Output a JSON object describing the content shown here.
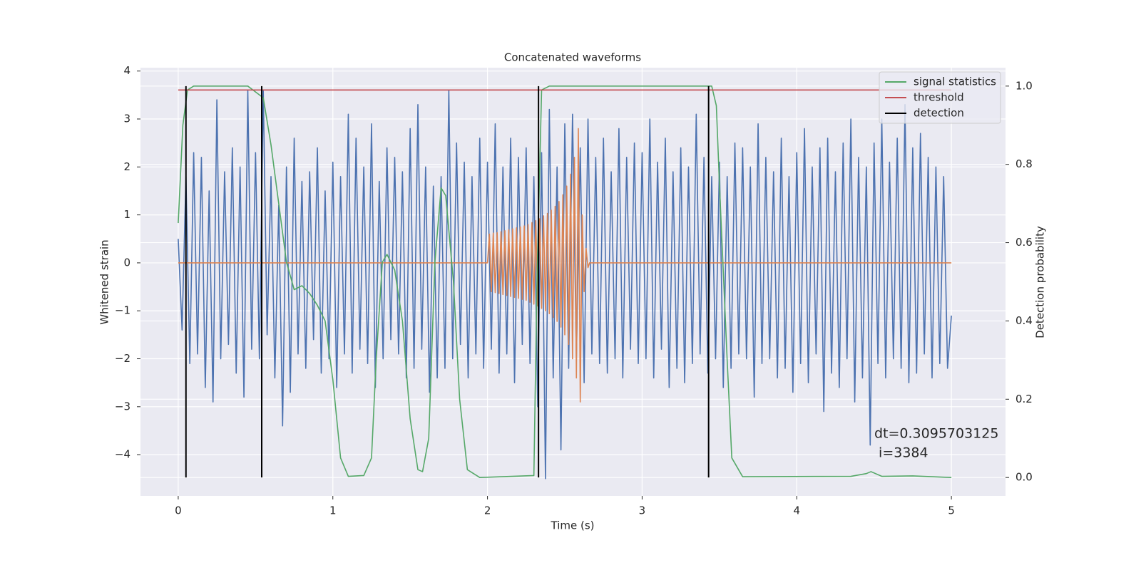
{
  "chart_data": {
    "type": "line",
    "title": "Concatenated waveforms",
    "xlabel": "Time (s)",
    "ylabel": "Whitened strain",
    "y2label": "Detection probability",
    "xlim": [
      -0.244,
      5.35
    ],
    "xticks": [
      0,
      1,
      2,
      3,
      4,
      5
    ],
    "ylim": [
      -4.86,
      4.07
    ],
    "yticks": [
      {
        "value": -4,
        "label": "−4"
      },
      {
        "value": -3,
        "label": "−3"
      },
      {
        "value": -2,
        "label": "−2"
      },
      {
        "value": -1,
        "label": "−1"
      },
      0,
      1,
      2,
      3,
      4
    ],
    "y2lim": [
      -0.047,
      1.047
    ],
    "y2ticks": [
      {
        "value": 0,
        "label": "0.0"
      },
      0.2,
      0.4,
      0.6,
      0.8,
      {
        "value": 1,
        "label": "1.0"
      }
    ],
    "grid": true,
    "legend": "upper right",
    "annotations": [
      "dt=0.3095703125",
      " i=3384"
    ],
    "series": [
      {
        "color": "#4c72b0",
        "x": [
          0,
          0.025,
          0.05,
          0.075,
          0.1,
          0.125,
          0.15,
          0.175,
          0.2,
          0.225,
          0.25,
          0.275,
          0.3,
          0.325,
          0.35,
          0.375,
          0.4,
          0.425,
          0.45,
          0.475,
          0.5,
          0.525,
          0.55,
          0.575,
          0.6,
          0.625,
          0.65,
          0.675,
          0.7,
          0.725,
          0.75,
          0.775,
          0.8,
          0.825,
          0.85,
          0.875,
          0.9,
          0.925,
          0.95,
          0.975,
          1,
          1.025,
          1.05,
          1.075,
          1.1,
          1.125,
          1.15,
          1.175,
          1.2,
          1.225,
          1.25,
          1.275,
          1.3,
          1.325,
          1.35,
          1.375,
          1.4,
          1.425,
          1.45,
          1.475,
          1.5,
          1.525,
          1.55,
          1.575,
          1.6,
          1.625,
          1.65,
          1.675,
          1.7,
          1.725,
          1.75,
          1.775,
          1.8,
          1.825,
          1.85,
          1.875,
          1.9,
          1.925,
          1.95,
          1.975,
          2,
          2.025,
          2.05,
          2.075,
          2.1,
          2.125,
          2.15,
          2.175,
          2.2,
          2.225,
          2.25,
          2.275,
          2.3,
          2.325,
          2.35,
          2.375,
          2.4,
          2.425,
          2.45,
          2.475,
          2.5,
          2.525,
          2.55,
          2.575,
          2.6,
          2.625,
          2.65,
          2.675,
          2.7,
          2.725,
          2.75,
          2.775,
          2.8,
          2.825,
          2.85,
          2.875,
          2.9,
          2.925,
          2.95,
          2.975,
          3,
          3.025,
          3.05,
          3.075,
          3.1,
          3.125,
          3.15,
          3.175,
          3.2,
          3.225,
          3.25,
          3.275,
          3.3,
          3.325,
          3.35,
          3.375,
          3.4,
          3.425,
          3.45,
          3.475,
          3.5,
          3.525,
          3.55,
          3.575,
          3.6,
          3.625,
          3.65,
          3.675,
          3.7,
          3.725,
          3.75,
          3.775,
          3.8,
          3.825,
          3.85,
          3.875,
          3.9,
          3.925,
          3.95,
          3.975,
          4,
          4.025,
          4.05,
          4.075,
          4.1,
          4.125,
          4.15,
          4.175,
          4.2,
          4.225,
          4.25,
          4.275,
          4.3,
          4.325,
          4.35,
          4.375,
          4.4,
          4.425,
          4.45,
          4.475,
          4.5,
          4.525,
          4.55,
          4.575,
          4.6,
          4.625,
          4.65,
          4.675,
          4.7,
          4.725,
          4.75,
          4.775,
          4.8,
          4.825,
          4.85,
          4.875,
          4.9,
          4.925,
          4.95,
          4.975,
          5
        ],
        "values": [
          0.5,
          -1.4,
          1.8,
          -2.1,
          2.3,
          -1.9,
          2.2,
          -2.6,
          1.5,
          -2.9,
          3.4,
          -2.0,
          1.9,
          -1.7,
          2.4,
          -2.3,
          2.0,
          -2.8,
          3.6,
          -1.8,
          2.3,
          -2.0,
          3.6,
          -1.5,
          1.8,
          -2.4,
          1.2,
          -3.4,
          2.0,
          -2.7,
          2.6,
          -1.9,
          1.7,
          -2.2,
          1.9,
          -1.6,
          2.4,
          -2.3,
          1.5,
          -2.0,
          2.1,
          -2.6,
          1.8,
          -1.9,
          3.1,
          -2.3,
          2.6,
          -1.8,
          2.0,
          -2.1,
          2.9,
          -2.6,
          1.7,
          -2.0,
          2.4,
          -1.6,
          2.2,
          -1.9,
          1.9,
          -2.4,
          2.8,
          -2.2,
          3.3,
          -1.8,
          2.0,
          -2.7,
          1.6,
          -2.4,
          1.8,
          -2.2,
          3.6,
          -2.0,
          2.5,
          -1.7,
          2.1,
          -2.4,
          1.8,
          -1.9,
          2.6,
          -2.2,
          2.1,
          -1.8,
          2.9,
          -2.3,
          2.0,
          -1.9,
          2.6,
          -2.5,
          2.2,
          -1.7,
          2.4,
          -2.1,
          1.8,
          -3.0,
          2.3,
          -4.5,
          3.2,
          -2.4,
          2.0,
          -3.9,
          2.9,
          -2.2,
          3.1,
          -2.0,
          2.4,
          -2.5,
          3.0,
          -1.9,
          2.2,
          -2.1,
          2.6,
          -2.3,
          1.9,
          -2.0,
          2.8,
          -2.4,
          2.2,
          -1.8,
          2.5,
          -2.1,
          2.3,
          -2.0,
          3.0,
          -2.4,
          2.1,
          -1.8,
          2.6,
          -2.6,
          1.9,
          -2.2,
          2.4,
          -2.5,
          2.0,
          -2.1,
          3.1,
          -1.9,
          2.2,
          -2.3,
          1.8,
          -2.0,
          2.1,
          -2.6,
          1.8,
          -2.2,
          2.5,
          -1.9,
          2.4,
          -2.0,
          2.0,
          -2.8,
          2.9,
          -2.1,
          2.2,
          -2.0,
          1.9,
          -2.4,
          2.6,
          -2.2,
          1.8,
          -2.7,
          2.3,
          -2.1,
          2.8,
          -2.5,
          2.0,
          -1.9,
          2.4,
          -3.1,
          2.6,
          -2.3,
          1.9,
          -2.6,
          2.5,
          -2.0,
          3.0,
          -2.9,
          2.2,
          -2.4,
          2.0,
          -3.8,
          2.5,
          -2.1,
          3.0,
          -2.4,
          2.1,
          -2.0,
          2.6,
          -2.2,
          3.3,
          -2.5,
          2.4,
          -2.3,
          2.7,
          -1.9,
          2.2,
          -2.4,
          2.0,
          -2.1,
          1.8,
          -2.2,
          -1.1
        ]
      },
      {
        "color": "#dd8452",
        "x": [
          0,
          2,
          2.0125,
          2.025,
          2.0375,
          2.05,
          2.0625,
          2.075,
          2.0875,
          2.1,
          2.1125,
          2.125,
          2.1375,
          2.15,
          2.1625,
          2.175,
          2.1875,
          2.2,
          2.2125,
          2.225,
          2.2375,
          2.25,
          2.2625,
          2.275,
          2.2875,
          2.3,
          2.3125,
          2.325,
          2.3375,
          2.35,
          2.3625,
          2.375,
          2.3875,
          2.4,
          2.4125,
          2.425,
          2.4375,
          2.45,
          2.4625,
          2.475,
          2.4875,
          2.5,
          2.5125,
          2.525,
          2.5375,
          2.55,
          2.5625,
          2.575,
          2.5875,
          2.6,
          2.6125,
          2.625,
          2.6375,
          2.65,
          2.66,
          5
        ],
        "values": [
          0,
          0,
          0.6,
          -0.6,
          0.62,
          -0.62,
          0.63,
          -0.64,
          0.65,
          -0.66,
          0.67,
          -0.68,
          0.69,
          -0.7,
          0.71,
          -0.72,
          0.73,
          -0.74,
          0.75,
          -0.76,
          0.77,
          -0.78,
          0.8,
          -0.82,
          0.84,
          -0.86,
          0.88,
          -0.9,
          0.92,
          -0.95,
          0.98,
          -1.0,
          1.03,
          -1.06,
          1.1,
          -1.14,
          1.18,
          -1.22,
          1.28,
          -1.34,
          1.42,
          -1.5,
          1.6,
          -1.7,
          1.85,
          -2.0,
          2.2,
          -2.4,
          2.8,
          -2.9,
          1.0,
          -0.6,
          0.3,
          -0.1,
          0,
          0
        ]
      },
      {
        "name": "signal statistics",
        "color": "#55a868",
        "axis": "y2",
        "x": [
          0,
          0.03,
          0.06,
          0.1,
          0.45,
          0.55,
          0.6,
          0.65,
          0.7,
          0.75,
          0.8,
          0.85,
          0.9,
          0.95,
          1.0,
          1.05,
          1.1,
          1.2,
          1.25,
          1.28,
          1.32,
          1.35,
          1.4,
          1.45,
          1.5,
          1.55,
          1.58,
          1.62,
          1.66,
          1.7,
          1.73,
          1.78,
          1.82,
          1.87,
          1.95,
          2.3,
          2.32,
          2.35,
          2.4,
          3.45,
          3.48,
          3.5,
          3.55,
          3.58,
          3.65,
          4.35,
          4.45,
          4.48,
          4.55,
          4.75,
          5.0
        ],
        "values": [
          0.65,
          0.9,
          0.99,
          1.0,
          1.0,
          0.97,
          0.85,
          0.7,
          0.55,
          0.48,
          0.49,
          0.47,
          0.44,
          0.4,
          0.25,
          0.05,
          0.003,
          0.005,
          0.05,
          0.3,
          0.55,
          0.57,
          0.53,
          0.4,
          0.15,
          0.02,
          0.015,
          0.1,
          0.55,
          0.74,
          0.72,
          0.5,
          0.2,
          0.02,
          0.0,
          0.005,
          0.5,
          0.99,
          1.0,
          1.0,
          0.95,
          0.75,
          0.3,
          0.05,
          0.002,
          0.003,
          0.01,
          0.015,
          0.003,
          0.004,
          0.0
        ]
      },
      {
        "name": "threshold",
        "color": "#c44e52",
        "axis": "y2",
        "x": [
          0,
          5
        ],
        "values": [
          0.99,
          0.99
        ]
      },
      {
        "name": "detection",
        "color": "#000000",
        "axis": "y2",
        "kind": "stem",
        "x": [
          0.05,
          0.54,
          2.33,
          3.43
        ],
        "values": [
          1,
          1,
          1,
          1
        ]
      }
    ]
  }
}
